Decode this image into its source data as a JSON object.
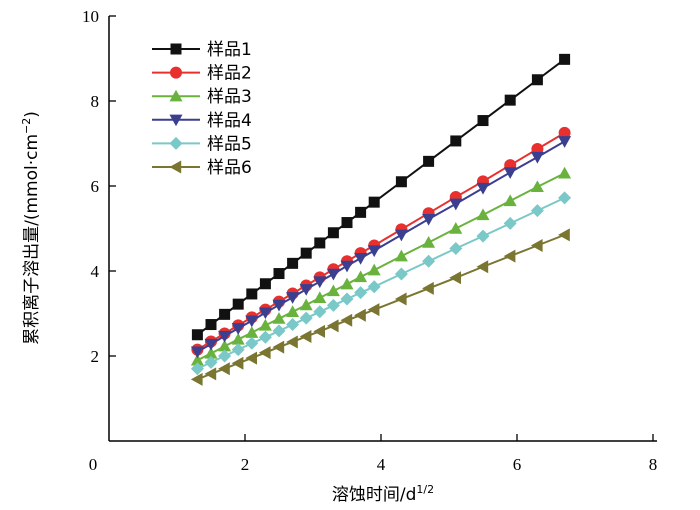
{
  "chart_data": {
    "type": "line",
    "title": "",
    "xlabel": "溶蚀时间/d",
    "xlabel_sup": "1/2",
    "ylabel": "累积离子溶出量/(mmol·cm",
    "ylabel_sup": "−2",
    "ylabel_end": ")",
    "xlim": [
      0,
      8
    ],
    "ylim": [
      0,
      10
    ],
    "xticks": [
      0,
      2,
      4,
      6,
      8
    ],
    "yticks": [
      2,
      4,
      6,
      8,
      10
    ],
    "xtick_labels": [
      "0",
      "2",
      "4",
      "6",
      "8"
    ],
    "ytick_labels": [
      "2",
      "4",
      "6",
      "8",
      "10"
    ],
    "grid": false,
    "legend_position": "top-left",
    "x": [
      1.3,
      1.5,
      1.7,
      1.9,
      2.1,
      2.3,
      2.5,
      2.7,
      2.9,
      3.1,
      3.3,
      3.5,
      3.7,
      3.9,
      4.3,
      4.7,
      5.1,
      5.5,
      5.9,
      6.3,
      6.7
    ],
    "series": [
      {
        "name": "样品1",
        "color": "#111111",
        "marker": "square",
        "values": [
          2.5,
          2.74,
          2.98,
          3.22,
          3.46,
          3.7,
          3.94,
          4.18,
          4.42,
          4.66,
          4.9,
          5.14,
          5.38,
          5.62,
          6.1,
          6.58,
          7.06,
          7.54,
          8.02,
          8.5,
          8.98
        ]
      },
      {
        "name": "样品2",
        "color": "#e8302f",
        "marker": "circle",
        "values": [
          2.15,
          2.34,
          2.53,
          2.72,
          2.91,
          3.09,
          3.28,
          3.47,
          3.66,
          3.85,
          4.04,
          4.23,
          4.42,
          4.6,
          4.98,
          5.36,
          5.74,
          6.11,
          6.49,
          6.87,
          7.25
        ]
      },
      {
        "name": "样品3",
        "color": "#6ab23e",
        "marker": "triangle-up",
        "values": [
          1.9,
          2.06,
          2.23,
          2.39,
          2.55,
          2.72,
          2.88,
          3.04,
          3.2,
          3.37,
          3.53,
          3.69,
          3.86,
          4.02,
          4.35,
          4.67,
          5.0,
          5.32,
          5.65,
          5.98,
          6.3
        ]
      },
      {
        "name": "样品4",
        "color": "#3b3f8f",
        "marker": "triangle-down",
        "values": [
          2.1,
          2.28,
          2.47,
          2.65,
          2.83,
          3.02,
          3.2,
          3.38,
          3.57,
          3.75,
          3.93,
          4.12,
          4.3,
          4.48,
          4.85,
          5.22,
          5.58,
          5.95,
          6.32,
          6.68,
          7.05
        ]
      },
      {
        "name": "样品5",
        "color": "#7ac8c8",
        "marker": "diamond",
        "values": [
          1.7,
          1.85,
          2.0,
          2.15,
          2.3,
          2.44,
          2.59,
          2.74,
          2.89,
          3.04,
          3.19,
          3.34,
          3.49,
          3.63,
          3.93,
          4.23,
          4.53,
          4.82,
          5.12,
          5.42,
          5.72
        ]
      },
      {
        "name": "样品6",
        "color": "#7a7530",
        "marker": "triangle-left",
        "values": [
          1.45,
          1.58,
          1.7,
          1.83,
          1.95,
          2.08,
          2.21,
          2.33,
          2.46,
          2.58,
          2.71,
          2.84,
          2.96,
          3.09,
          3.34,
          3.59,
          3.84,
          4.1,
          4.35,
          4.6,
          4.85
        ]
      }
    ]
  }
}
